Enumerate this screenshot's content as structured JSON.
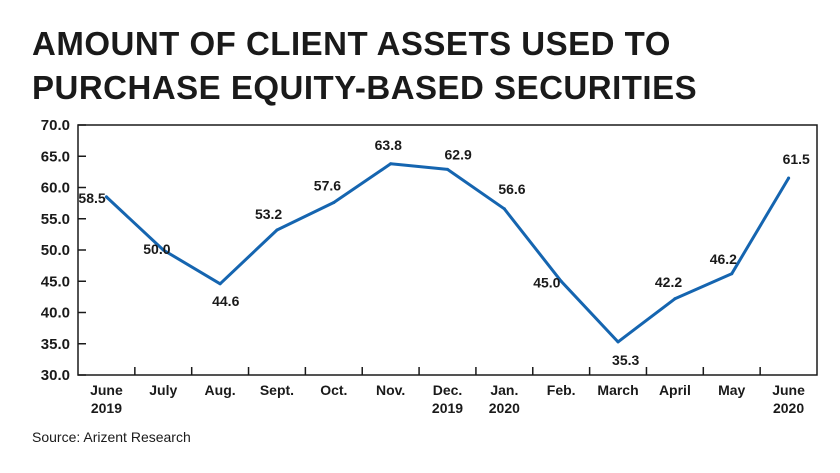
{
  "title_line1": "AMOUNT OF CLIENT ASSETS USED TO",
  "title_line2": "PURCHASE EQUITY-BASED SECURITIES",
  "source": "Source: Arizent Research",
  "chart_data": {
    "type": "line",
    "title": "AMOUNT OF CLIENT ASSETS USED TO PURCHASE EQUITY-BASED SECURITIES",
    "categories": [
      "June 2019",
      "July",
      "Aug.",
      "Sept.",
      "Oct.",
      "Nov.",
      "Dec. 2019",
      "Jan. 2020",
      "Feb.",
      "March",
      "April",
      "May",
      "June 2020"
    ],
    "category_lines": [
      [
        "June",
        "2019"
      ],
      [
        "July"
      ],
      [
        "Aug."
      ],
      [
        "Sept."
      ],
      [
        "Oct."
      ],
      [
        "Nov."
      ],
      [
        "Dec.",
        "2019"
      ],
      [
        "Jan.",
        "2020"
      ],
      [
        "Feb."
      ],
      [
        "March"
      ],
      [
        "April"
      ],
      [
        "May"
      ],
      [
        "June",
        "2020"
      ]
    ],
    "values": [
      58.5,
      50.0,
      44.6,
      53.2,
      57.6,
      63.8,
      62.9,
      56.6,
      45.0,
      35.3,
      42.2,
      46.2,
      61.5
    ],
    "value_labels": [
      "58.5",
      "50.0",
      "44.6",
      "53.2",
      "57.6",
      "63.8",
      "62.9",
      "56.6",
      "45.0",
      "35.3",
      "42.2",
      "46.2",
      "61.5"
    ],
    "ylim": [
      30,
      70
    ],
    "yticks": [
      "30.0",
      "35.0",
      "40.0",
      "45.0",
      "50.0",
      "55.0",
      "60.0",
      "65.0",
      "70.0"
    ],
    "xlabel": "",
    "ylabel": "",
    "line_color": "#1565b0",
    "axis_color": "#1a1a1a",
    "grid": false
  }
}
